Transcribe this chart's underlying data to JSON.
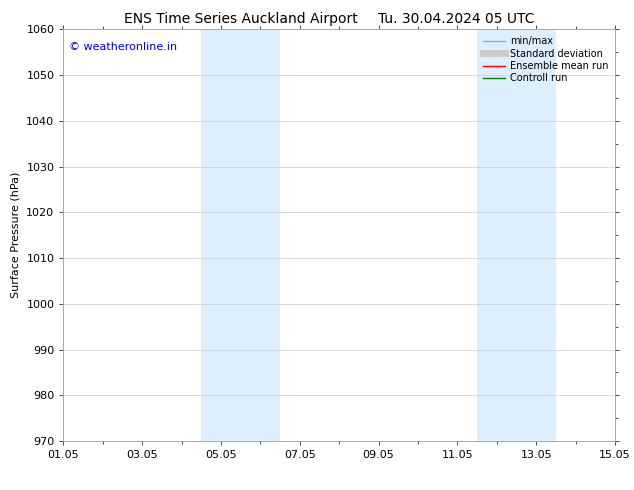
{
  "title_left": "ENS Time Series Auckland Airport",
  "title_right": "Tu. 30.04.2024 05 UTC",
  "ylabel": "Surface Pressure (hPa)",
  "ylim": [
    970,
    1060
  ],
  "yticks": [
    970,
    980,
    990,
    1000,
    1010,
    1020,
    1030,
    1040,
    1050,
    1060
  ],
  "xlim": [
    0,
    14
  ],
  "xtick_labels": [
    "01.05",
    "03.05",
    "05.05",
    "07.05",
    "09.05",
    "11.05",
    "13.05",
    "15.05"
  ],
  "xtick_positions": [
    0,
    2,
    4,
    6,
    8,
    10,
    12,
    14
  ],
  "shaded_regions": [
    {
      "xstart": 3.5,
      "xend": 5.5,
      "color": "#ddeeff"
    },
    {
      "xstart": 10.5,
      "xend": 12.5,
      "color": "#ddeeff"
    }
  ],
  "watermark_text": "© weatheronline.in",
  "watermark_color": "#0000cc",
  "background_color": "#ffffff",
  "legend_items": [
    {
      "label": "min/max",
      "color": "#aaaaaa",
      "lw": 1.0
    },
    {
      "label": "Standard deviation",
      "color": "#cccccc",
      "lw": 5
    },
    {
      "label": "Ensemble mean run",
      "color": "#ff0000",
      "lw": 1.0
    },
    {
      "label": "Controll run",
      "color": "#008000",
      "lw": 1.0
    }
  ],
  "grid_color": "#cccccc",
  "spine_color": "#aaaaaa",
  "title_fontsize": 10,
  "ylabel_fontsize": 8,
  "tick_fontsize": 8,
  "legend_fontsize": 7,
  "watermark_fontsize": 8
}
